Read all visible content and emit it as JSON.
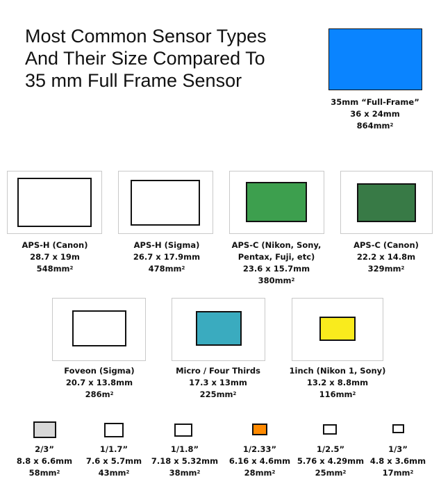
{
  "title": {
    "line1": "Most Common Sensor Types",
    "line2": "And Their Size Compared To",
    "line3": "35 mm Full Frame Sensor"
  },
  "colors": {
    "full_frame": "#0a84ff",
    "apsc_nikon": "#3d9f4e",
    "apsc_canon": "#387a46",
    "micro_four_thirds": "#3aabbf",
    "one_inch": "#f9eb1d",
    "two_thirds": "#d8d8d8",
    "one_2_33": "#ff8a00",
    "empty": "#ffffff"
  },
  "sensors": {
    "full_frame": {
      "name": "35mm “Full-Frame”",
      "dims": "36 x 24mm",
      "area": "864mm",
      "sup": "2"
    },
    "aps_h_canon": {
      "name": "APS-H (Canon)",
      "dims": "28.7 x 19m",
      "area": "548mm",
      "sup": "2"
    },
    "aps_h_sigma": {
      "name": "APS-H (Sigma)",
      "dims": "26.7 x 17.9mm",
      "area": "478mm",
      "sup": "2"
    },
    "aps_c_nikon": {
      "name_line1": "APS-C (Nikon, Sony,",
      "name_line2": "Pentax, Fuji, etc)",
      "dims": "23.6 x 15.7mm",
      "area": "380mm",
      "sup": "2"
    },
    "aps_c_canon": {
      "name": "APS-C (Canon)",
      "dims": "22.2 x 14.8m",
      "area": "329mm",
      "sup": "2"
    },
    "foveon": {
      "name": "Foveon (Sigma)",
      "dims": "20.7 x 13.8mm",
      "area": "286m",
      "sup": "2"
    },
    "micro_four_thirds": {
      "name": "Micro / Four Thirds",
      "dims": "17.3 x 13mm",
      "area": "225mm",
      "sup": "2"
    },
    "one_inch": {
      "name": "1inch (Nikon 1, Sony)",
      "dims": "13.2 x 8.8mm",
      "area": "116mm",
      "sup": "2"
    },
    "s_2_3": {
      "name": "2/3”",
      "dims": "8.8 x 6.6mm",
      "area": "58mm",
      "sup": "2"
    },
    "s_1_1_7": {
      "name": "1/1.7”",
      "dims": "7.6 x 5.7mm",
      "area": "43mm",
      "sup": "2"
    },
    "s_1_1_8": {
      "name": "1/1.8”",
      "dims": "7.18 x 5.32mm",
      "area": "38mm",
      "sup": "2"
    },
    "s_1_2_33": {
      "name": "1/2.33”",
      "dims": "6.16 x 4.6mm",
      "area": "28mm",
      "sup": "2"
    },
    "s_1_2_5": {
      "name": "1/2.5”",
      "dims": "5.76 x 4.29mm",
      "area": "25mm",
      "sup": "2"
    },
    "s_1_3": {
      "name": "1/3”",
      "dims": "4.8 x 3.6mm",
      "area": "17mm",
      "sup": "2"
    }
  }
}
